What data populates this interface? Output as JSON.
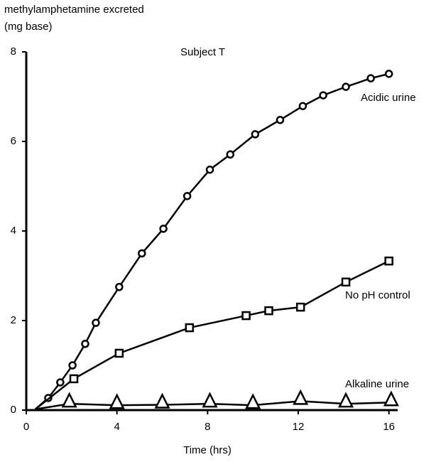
{
  "chart_data": {
    "type": "line",
    "title": "Subject T",
    "y_label": [
      "methylamphetamine excreted",
      "(mg base)"
    ],
    "x_label": "Time (hrs)",
    "xlim": [
      0,
      16.7
    ],
    "xticks": [
      0,
      4,
      8,
      12,
      16
    ],
    "ylim": [
      0,
      8
    ],
    "yticks": [
      0,
      2,
      4,
      6,
      8
    ],
    "series": [
      {
        "name": "Acidic urine",
        "color": "#000000",
        "marker": "circle",
        "x": [
          0.4,
          0.97,
          1.5,
          2.04,
          2.6,
          3.07,
          4.1,
          5.1,
          6.05,
          7.1,
          8.1,
          9.0,
          10.1,
          11.2,
          12.2,
          13.1,
          14.1,
          15.2,
          16
        ],
        "values": [
          0.02,
          0.27,
          0.62,
          1.0,
          1.48,
          1.95,
          2.75,
          3.5,
          4.05,
          4.78,
          5.37,
          5.71,
          6.16,
          6.48,
          6.79,
          7.03,
          7.22,
          7.41,
          7.51
        ]
      },
      {
        "name": "No pH control",
        "color": "#000000",
        "marker": "square",
        "x": [
          0.4,
          2.1,
          4.1,
          7.2,
          9.7,
          10.7,
          12.1,
          14.1,
          16
        ],
        "values": [
          0.02,
          0.7,
          1.27,
          1.84,
          2.11,
          2.22,
          2.3,
          2.86,
          3.33
        ]
      },
      {
        "name": "Alkaline urine",
        "color": "#000000",
        "marker": "triangle",
        "x": [
          0.4,
          1.9,
          4,
          6,
          8.1,
          10,
          12.1,
          14.1,
          16.1
        ],
        "values": [
          0.02,
          0.14,
          0.11,
          0.12,
          0.14,
          0.11,
          0.2,
          0.14,
          0.17
        ]
      }
    ]
  }
}
